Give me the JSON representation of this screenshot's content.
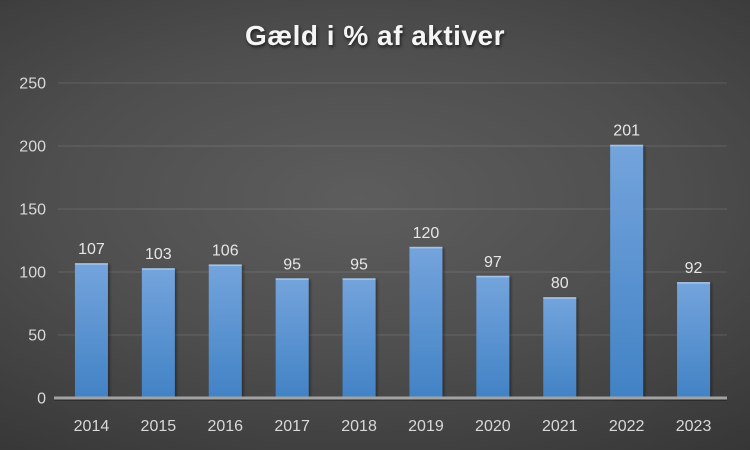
{
  "chart_data": {
    "type": "bar",
    "title": "Gæld i % af aktiver",
    "categories": [
      "2014",
      "2015",
      "2016",
      "2017",
      "2018",
      "2019",
      "2020",
      "2021",
      "2022",
      "2023"
    ],
    "values": [
      107,
      103,
      106,
      95,
      95,
      120,
      97,
      80,
      201,
      92
    ],
    "xlabel": "",
    "ylabel": "",
    "ylim": [
      0,
      250
    ],
    "yticks": [
      0,
      50,
      100,
      150,
      200,
      250
    ],
    "grid": true,
    "legend_position": "none",
    "data_labels_shown": true
  },
  "colors": {
    "bar_top": "#74a4dc",
    "bar_bottom": "#4182c5",
    "bar_highlight": "rgba(255,255,255,0.35)",
    "gridline": "rgba(255,255,255,0.13)",
    "axis_line": "#a2a2a2",
    "axis_label": "#d9d9d9",
    "data_label": "#e6e6e6",
    "title": "#f5f5f5"
  }
}
